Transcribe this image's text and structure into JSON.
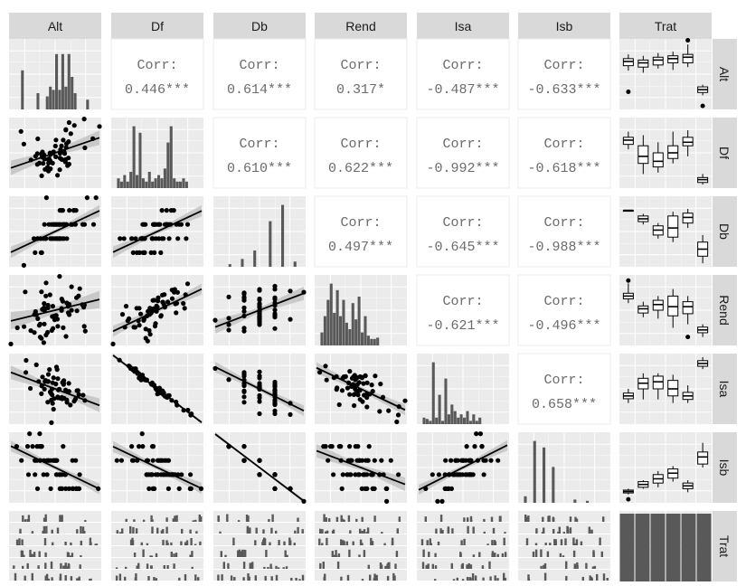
{
  "variables": [
    "Alt",
    "Df",
    "Db",
    "Rend",
    "Isa",
    "Isb",
    "Trat"
  ],
  "chart_data": {
    "type": "scatter-matrix",
    "title": "",
    "variables": [
      "Alt",
      "Df",
      "Db",
      "Rend",
      "Isa",
      "Isb",
      "Trat"
    ],
    "correlation_label": "Corr:",
    "correlations": [
      {
        "row": "Df",
        "col": "Alt",
        "value": 0.446,
        "stars": "***",
        "text": "0.446***"
      },
      {
        "row": "Db",
        "col": "Alt",
        "value": 0.614,
        "stars": "***",
        "text": "0.614***"
      },
      {
        "row": "Rend",
        "col": "Alt",
        "value": 0.317,
        "stars": "*",
        "text": "0.317*"
      },
      {
        "row": "Isa",
        "col": "Alt",
        "value": -0.487,
        "stars": "***",
        "text": "-0.487***"
      },
      {
        "row": "Isb",
        "col": "Alt",
        "value": -0.633,
        "stars": "***",
        "text": "-0.633***"
      },
      {
        "row": "Db",
        "col": "Df",
        "value": 0.61,
        "stars": "***",
        "text": "0.610***"
      },
      {
        "row": "Rend",
        "col": "Df",
        "value": 0.622,
        "stars": "***",
        "text": "0.622***"
      },
      {
        "row": "Isa",
        "col": "Df",
        "value": -0.992,
        "stars": "***",
        "text": "-0.992***"
      },
      {
        "row": "Isb",
        "col": "Df",
        "value": -0.618,
        "stars": "***",
        "text": "-0.618***"
      },
      {
        "row": "Rend",
        "col": "Db",
        "value": 0.497,
        "stars": "***",
        "text": "0.497***"
      },
      {
        "row": "Isa",
        "col": "Db",
        "value": -0.645,
        "stars": "***",
        "text": "-0.645***"
      },
      {
        "row": "Isb",
        "col": "Db",
        "value": -0.988,
        "stars": "***",
        "text": "-0.988***"
      },
      {
        "row": "Isa",
        "col": "Rend",
        "value": -0.621,
        "stars": "***",
        "text": "-0.621***"
      },
      {
        "row": "Isb",
        "col": "Rend",
        "value": -0.496,
        "stars": "***",
        "text": "-0.496***"
      },
      {
        "row": "Isb",
        "col": "Isa",
        "value": 0.658,
        "stars": "***",
        "text": "0.658***"
      }
    ],
    "panels": {
      "diagonal": "density histogram",
      "lower": "scatter with linear fit and confidence band",
      "upper": "correlation coefficient",
      "trat_column": "box plots by treatment",
      "trat_row": "faceted histograms by treatment",
      "trat_diagonal": "bar chart of treatment counts"
    },
    "treatment_levels": 6,
    "grid": true,
    "colors": {
      "panel_background": "#ebebeb",
      "grid": "#ffffff",
      "strip": "#d9d9d9",
      "marks": "#595959",
      "points": "#000000",
      "band": "#bdbdbd",
      "correlation_text": "#6b6b6b"
    }
  }
}
